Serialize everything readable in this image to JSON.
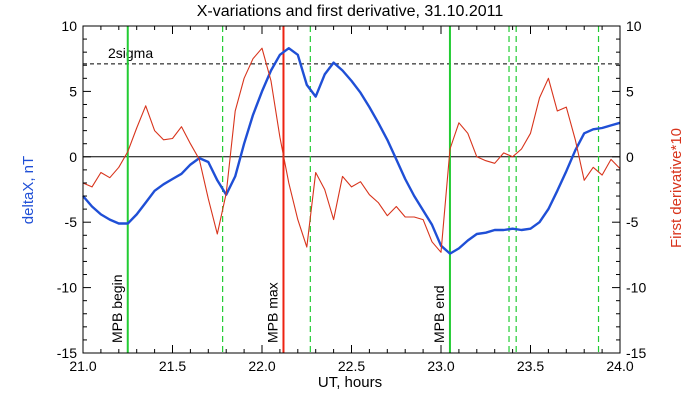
{
  "chart_data": {
    "type": "line",
    "title": "X-variations and first derivative, 31.10.2011",
    "xlabel": "UT, hours",
    "ylabel_left": "deltaX, nT",
    "ylabel_right": "First derivative*10",
    "xlim": [
      21.0,
      24.0
    ],
    "ylim": [
      -15,
      10
    ],
    "x_ticks": [
      "21.0",
      "21.5",
      "22.0",
      "22.5",
      "23.0",
      "23.5",
      "24.0"
    ],
    "x_tick_values": [
      21.0,
      21.5,
      22.0,
      22.5,
      23.0,
      23.5,
      24.0
    ],
    "y_ticks": [
      "10",
      "5",
      "0",
      "-5",
      "-10",
      "-15"
    ],
    "y_tick_values": [
      10,
      5,
      0,
      -5,
      -10,
      -15
    ],
    "threshold": {
      "label": "2sigma",
      "value": 7.1
    },
    "zero_line": 0,
    "colors": {
      "deltaX": "#1f4fd6",
      "derivative": "#d8341c",
      "marker_green": "#22cc33",
      "marker_red": "#ee2211"
    },
    "markers": [
      {
        "x": 21.25,
        "label": "MPB begin",
        "style": "solid",
        "color": "green"
      },
      {
        "x": 22.12,
        "label": "MPB max",
        "style": "solid",
        "color": "red"
      },
      {
        "x": 23.05,
        "label": "MPB end",
        "style": "solid",
        "color": "green"
      },
      {
        "x": 21.78,
        "label": "",
        "style": "dashed",
        "color": "green"
      },
      {
        "x": 22.27,
        "label": "",
        "style": "dashed",
        "color": "green"
      },
      {
        "x": 23.38,
        "label": "",
        "style": "dashed",
        "color": "green"
      },
      {
        "x": 23.42,
        "label": "",
        "style": "dashed",
        "color": "green"
      },
      {
        "x": 23.88,
        "label": "",
        "style": "dashed",
        "color": "green"
      }
    ],
    "series": [
      {
        "name": "deltaX",
        "x": [
          21.0,
          21.05,
          21.1,
          21.15,
          21.2,
          21.25,
          21.3,
          21.35,
          21.4,
          21.45,
          21.5,
          21.55,
          21.6,
          21.65,
          21.7,
          21.75,
          21.8,
          21.85,
          21.9,
          21.95,
          22.0,
          22.05,
          22.1,
          22.15,
          22.2,
          22.25,
          22.3,
          22.35,
          22.4,
          22.45,
          22.5,
          22.55,
          22.6,
          22.65,
          22.7,
          22.75,
          22.8,
          22.85,
          22.9,
          22.95,
          23.0,
          23.05,
          23.1,
          23.15,
          23.2,
          23.25,
          23.3,
          23.35,
          23.4,
          23.45,
          23.5,
          23.55,
          23.6,
          23.65,
          23.7,
          23.75,
          23.8,
          23.85,
          23.9,
          23.95,
          24.0
        ],
        "y": [
          -3.0,
          -3.8,
          -4.4,
          -4.8,
          -5.1,
          -5.1,
          -4.4,
          -3.5,
          -2.6,
          -2.1,
          -1.7,
          -1.3,
          -0.6,
          -0.1,
          -0.4,
          -1.8,
          -2.9,
          -1.5,
          1.0,
          3.2,
          5.0,
          6.6,
          7.8,
          8.3,
          7.8,
          5.5,
          4.6,
          6.3,
          7.2,
          6.6,
          5.8,
          4.9,
          3.8,
          2.6,
          1.3,
          -0.2,
          -1.7,
          -3.0,
          -4.1,
          -5.2,
          -6.8,
          -7.4,
          -7.0,
          -6.4,
          -5.9,
          -5.8,
          -5.6,
          -5.6,
          -5.5,
          -5.6,
          -5.5,
          -5.0,
          -4.0,
          -2.6,
          -1.1,
          0.5,
          1.8,
          2.1,
          2.2,
          2.4,
          2.6
        ]
      },
      {
        "name": "First derivative*10",
        "x": [
          21.0,
          21.05,
          21.1,
          21.15,
          21.2,
          21.25,
          21.3,
          21.35,
          21.4,
          21.45,
          21.5,
          21.55,
          21.6,
          21.65,
          21.7,
          21.75,
          21.8,
          21.85,
          21.9,
          21.95,
          22.0,
          22.05,
          22.1,
          22.15,
          22.2,
          22.25,
          22.3,
          22.35,
          22.4,
          22.45,
          22.5,
          22.55,
          22.6,
          22.65,
          22.7,
          22.75,
          22.8,
          22.85,
          22.9,
          22.95,
          23.0,
          23.05,
          23.1,
          23.15,
          23.2,
          23.25,
          23.3,
          23.35,
          23.4,
          23.45,
          23.5,
          23.55,
          23.6,
          23.65,
          23.7,
          23.75,
          23.8,
          23.85,
          23.9,
          23.95,
          24.0
        ],
        "y": [
          -2.0,
          -2.3,
          -1.2,
          -1.6,
          -0.8,
          0.4,
          2.2,
          3.9,
          2.0,
          1.3,
          1.4,
          2.3,
          1.0,
          -0.2,
          -3.2,
          -5.9,
          -2.8,
          3.5,
          6.0,
          7.5,
          8.3,
          5.8,
          1.5,
          -2.0,
          -4.8,
          -6.9,
          -1.2,
          -2.5,
          -4.8,
          -1.5,
          -2.3,
          -1.9,
          -2.9,
          -3.5,
          -4.5,
          -3.8,
          -4.6,
          -4.6,
          -4.8,
          -6.5,
          -7.3,
          0.6,
          2.6,
          1.8,
          0.0,
          -0.3,
          -0.5,
          0.3,
          0.0,
          0.6,
          1.8,
          4.5,
          6.0,
          3.5,
          3.8,
          1.3,
          -1.8,
          -0.8,
          -1.4,
          -0.2,
          -0.9
        ]
      }
    ]
  }
}
